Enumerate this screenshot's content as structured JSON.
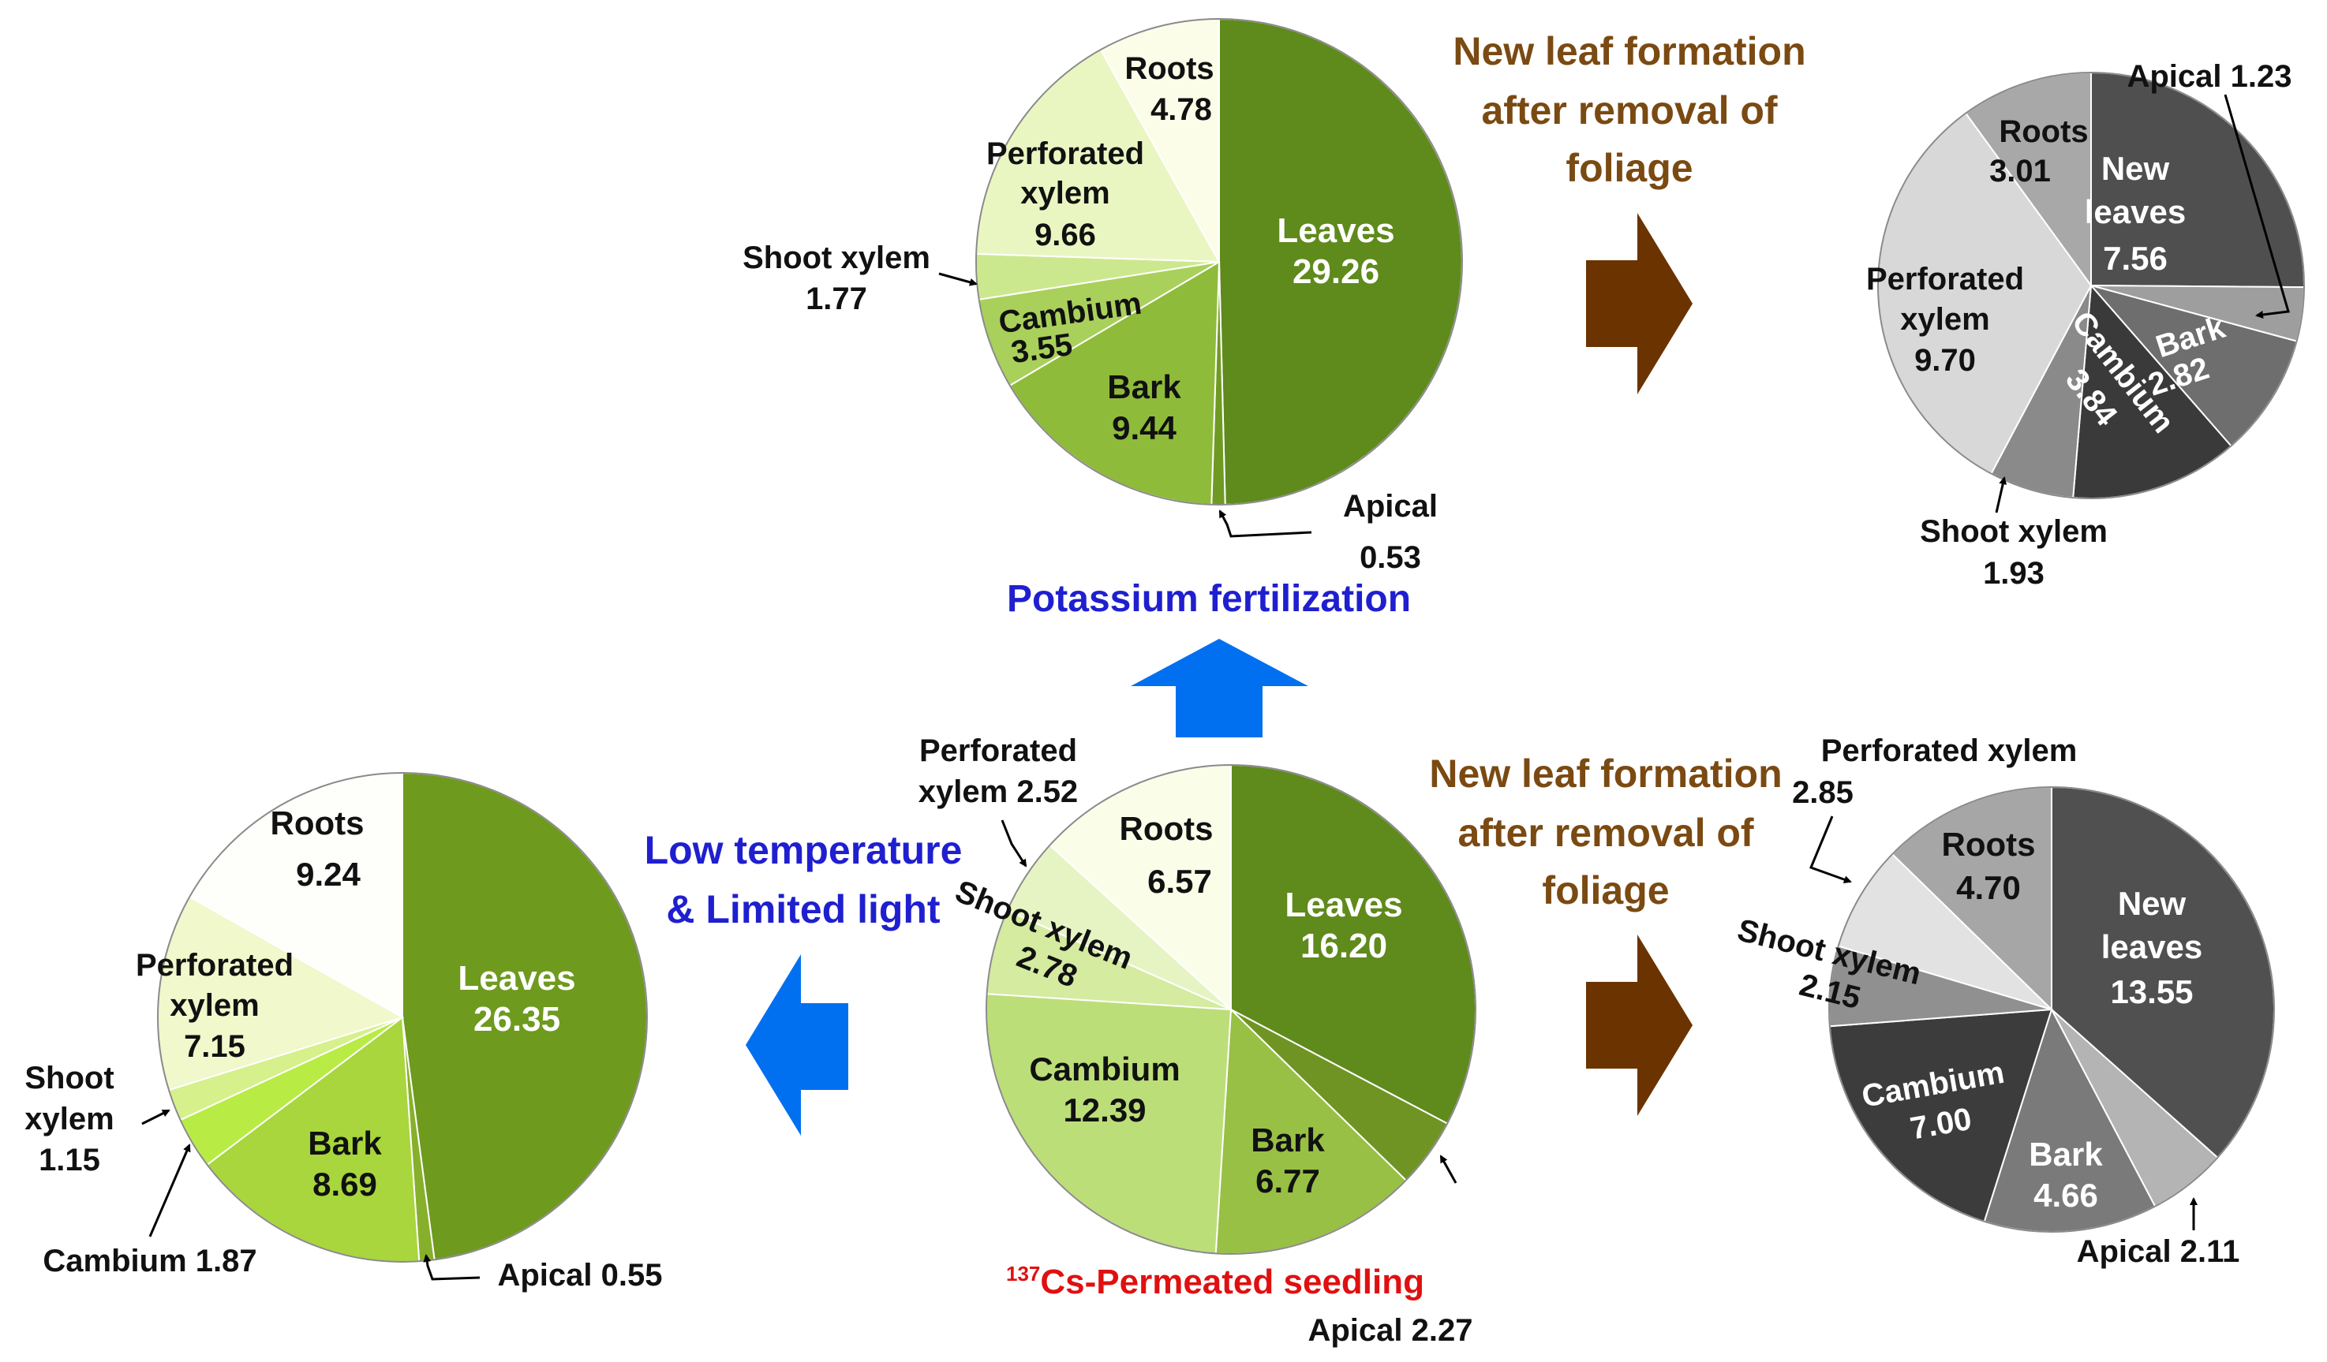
{
  "caption": {
    "isotope_sup": "137",
    "main": "Cs-Permeated seedling",
    "apical": "Apical 2.27"
  },
  "labels": {
    "potassium": "Potassium fertilization",
    "low_temp_line1": "Low temperature",
    "low_temp_line2": "& Limited light",
    "new_leaf_top_1": "New leaf formation",
    "new_leaf_top_2": "after removal of",
    "new_leaf_top_3": "foliage",
    "new_leaf_bottom_1": "New leaf formation",
    "new_leaf_bottom_2": "after removal of",
    "new_leaf_bottom_3": "foliage"
  },
  "colors": {
    "blue_arrow": "#0070f0",
    "brown_arrow": "#6b3300",
    "blue_text": "#1f1fd0",
    "brown_text": "#7a4a12",
    "red_text": "#e01010"
  },
  "chart_data": [
    {
      "type": "pie",
      "name": "Potassium fertilization",
      "slices": [
        {
          "label": "Leaves",
          "value": 29.26,
          "color": "#5f8a1c"
        },
        {
          "label": "Apical",
          "value": 0.53,
          "color": "#6f9a22"
        },
        {
          "label": "Bark",
          "value": 9.44,
          "color": "#8fbb3a"
        },
        {
          "label": "Cambium",
          "value": 3.55,
          "color": "#a9d05a"
        },
        {
          "label": "Shoot xylem",
          "value": 1.77,
          "color": "#cce88e"
        },
        {
          "label": "Perforated xylem",
          "value": 9.66,
          "color": "#eaf6c2"
        },
        {
          "label": "Roots",
          "value": 4.78,
          "color": "#fbfde8"
        }
      ],
      "text": {
        "leaves": [
          "Leaves",
          "29.26"
        ],
        "bark": [
          "Bark",
          "9.44"
        ],
        "cambium": [
          "Cambium",
          "3.55"
        ],
        "perforated": [
          "Perforated",
          "xylem",
          "9.66"
        ],
        "roots": [
          "Roots",
          "4.78"
        ],
        "shoot": [
          "Shoot xylem",
          "1.77"
        ],
        "apical": [
          "Apical",
          "0.53"
        ]
      }
    },
    {
      "type": "pie",
      "name": "137Cs-Permeated seedling",
      "slices": [
        {
          "label": "Leaves",
          "value": 16.2,
          "color": "#5f8a1c"
        },
        {
          "label": "Apical",
          "value": 2.27,
          "color": "#6f9424"
        },
        {
          "label": "Bark",
          "value": 6.77,
          "color": "#98c044"
        },
        {
          "label": "Cambium",
          "value": 12.39,
          "color": "#bcde78"
        },
        {
          "label": "Shoot xylem",
          "value": 2.78,
          "color": "#d4eba0"
        },
        {
          "label": "Perforated xylem",
          "value": 2.52,
          "color": "#e6f4c4"
        },
        {
          "label": "Roots",
          "value": 6.57,
          "color": "#fafde8"
        }
      ],
      "text": {
        "leaves": [
          "Leaves",
          "16.20"
        ],
        "bark": [
          "Bark",
          "6.77"
        ],
        "cambium": [
          "Cambium",
          "12.39"
        ],
        "roots": [
          "Roots",
          "6.57"
        ],
        "perforated": [
          "Perforated",
          "xylem 2.52"
        ],
        "shoot": [
          "Shoot xylem",
          "2.78"
        ]
      }
    },
    {
      "type": "pie",
      "name": "Low temperature & Limited light",
      "slices": [
        {
          "label": "Leaves",
          "value": 26.35,
          "color": "#6e9a1e"
        },
        {
          "label": "Apical",
          "value": 0.55,
          "color": "#86b02c"
        },
        {
          "label": "Bark",
          "value": 8.69,
          "color": "#a8d63c"
        },
        {
          "label": "Cambium",
          "value": 1.87,
          "color": "#b8ec44"
        },
        {
          "label": "Shoot xylem",
          "value": 1.15,
          "color": "#d6f08c"
        },
        {
          "label": "Perforated xylem",
          "value": 7.15,
          "color": "#f0f8cc"
        },
        {
          "label": "Roots",
          "value": 9.24,
          "color": "#fefffa"
        }
      ],
      "text": {
        "leaves": [
          "Leaves",
          "26.35"
        ],
        "bark": [
          "Bark",
          "8.69"
        ],
        "perforated": [
          "Perforated",
          "xylem",
          "7.15"
        ],
        "roots": [
          "Roots",
          "9.24"
        ],
        "shoot": [
          "Shoot",
          "xylem",
          "1.15"
        ],
        "cambium": [
          "Cambium 1.87"
        ],
        "apical": [
          "Apical 0.55"
        ]
      }
    },
    {
      "type": "pie",
      "name": "New leaf formation (potassium)",
      "slices": [
        {
          "label": "New leaves",
          "value": 7.56,
          "color": "#4f4f4f"
        },
        {
          "label": "Apical",
          "value": 1.23,
          "color": "#9e9e9e"
        },
        {
          "label": "Bark",
          "value": 2.82,
          "color": "#6e6e6e"
        },
        {
          "label": "Cambium",
          "value": 3.84,
          "color": "#3a3a3a"
        },
        {
          "label": "Shoot xylem",
          "value": 1.93,
          "color": "#8a8a8a"
        },
        {
          "label": "Perforated xylem",
          "value": 9.7,
          "color": "#d8d8d8"
        },
        {
          "label": "Roots",
          "value": 3.01,
          "color": "#a8a8a8"
        }
      ],
      "text": {
        "new_leaves": [
          "New",
          "leaves",
          "7.56"
        ],
        "roots": [
          "Roots",
          "3.01"
        ],
        "perforated": [
          "Perforated",
          "xylem",
          "9.70"
        ],
        "bark": [
          "Bark",
          "2.82"
        ],
        "cambium": [
          "Cambium",
          "3.84"
        ],
        "apical": [
          "Apical 1.23"
        ],
        "shoot": [
          "Shoot xylem",
          "1.93"
        ]
      }
    },
    {
      "type": "pie",
      "name": "New leaf formation (seedling)",
      "slices": [
        {
          "label": "New leaves",
          "value": 13.55,
          "color": "#505050"
        },
        {
          "label": "Apical",
          "value": 2.11,
          "color": "#b4b4b4"
        },
        {
          "label": "Bark",
          "value": 4.66,
          "color": "#7a7a7a"
        },
        {
          "label": "Cambium",
          "value": 7.0,
          "color": "#3c3c3c"
        },
        {
          "label": "Shoot xylem",
          "value": 2.15,
          "color": "#909090"
        },
        {
          "label": "Perforated xylem",
          "value": 2.85,
          "color": "#e2e2e2"
        },
        {
          "label": "Roots",
          "value": 4.7,
          "color": "#a6a6a6"
        }
      ],
      "text": {
        "new_leaves": [
          "New",
          "leaves",
          "13.55"
        ],
        "roots": [
          "Roots",
          "4.70"
        ],
        "cambium": [
          "Cambium",
          "7.00"
        ],
        "bark": [
          "Bark",
          "4.66"
        ],
        "perforated": [
          "Perforated xylem",
          "2.85"
        ],
        "shoot": [
          "Shoot xylem",
          "2.15"
        ],
        "apical": [
          "Apical 2.11"
        ]
      }
    }
  ]
}
